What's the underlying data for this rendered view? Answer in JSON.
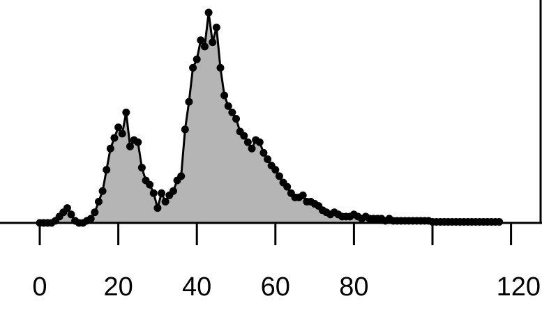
{
  "chart_data": {
    "type": "area",
    "title": "",
    "xlabel": "",
    "ylabel": "",
    "xlim": [
      0,
      120
    ],
    "ylim": [
      0,
      1.0
    ],
    "x_ticks": [
      0,
      20,
      40,
      60,
      80,
      100,
      120
    ],
    "x_tick_labels": [
      "0",
      "20",
      "40",
      "60",
      "80",
      "",
      "120"
    ],
    "grid": false,
    "legend": "none",
    "colors": {
      "fill": "#b5b5b5",
      "line": "#000000",
      "marker": "#000000"
    },
    "series": [
      {
        "x": [
          0,
          1,
          2,
          3,
          4,
          5,
          6,
          7,
          8,
          9,
          10,
          11,
          12,
          13,
          14,
          15,
          16,
          17,
          18,
          19,
          20,
          21,
          22,
          23,
          24,
          25,
          26,
          27,
          28,
          29,
          30,
          31,
          32,
          33,
          34,
          35,
          36,
          37,
          38,
          39,
          40,
          41,
          42,
          43,
          44,
          45,
          46,
          47,
          48,
          49,
          50,
          51,
          52,
          53,
          54,
          55,
          56,
          57,
          58,
          59,
          60,
          61,
          62,
          63,
          64,
          65,
          66,
          67,
          68,
          69,
          70,
          71,
          72,
          73,
          74,
          75,
          76,
          77,
          78,
          79,
          80,
          81,
          82,
          83,
          84,
          85,
          86,
          87,
          88,
          89,
          90,
          91,
          92,
          93,
          94,
          95,
          96,
          97,
          98,
          99,
          100,
          101,
          102,
          103,
          104,
          105,
          106,
          107,
          108,
          109,
          110,
          111,
          112,
          113,
          114,
          115,
          116,
          117
        ],
        "y": [
          0,
          0,
          0,
          0,
          0.01,
          0.03,
          0.05,
          0.07,
          0.04,
          0.01,
          0,
          0,
          0.01,
          0.02,
          0.05,
          0.1,
          0.15,
          0.25,
          0.35,
          0.4,
          0.45,
          0.42,
          0.52,
          0.36,
          0.39,
          0.38,
          0.26,
          0.2,
          0.18,
          0.14,
          0.07,
          0.14,
          0.1,
          0.13,
          0.15,
          0.2,
          0.22,
          0.44,
          0.57,
          0.73,
          0.77,
          0.86,
          0.83,
          0.99,
          0.85,
          0.92,
          0.73,
          0.6,
          0.55,
          0.52,
          0.49,
          0.43,
          0.41,
          0.38,
          0.35,
          0.39,
          0.38,
          0.33,
          0.3,
          0.27,
          0.25,
          0.22,
          0.19,
          0.17,
          0.14,
          0.12,
          0.12,
          0.13,
          0.1,
          0.1,
          0.09,
          0.08,
          0.06,
          0.05,
          0.04,
          0.05,
          0.04,
          0.03,
          0.03,
          0.03,
          0.04,
          0.03,
          0.02,
          0.03,
          0.02,
          0.02,
          0.02,
          0.02,
          0.01,
          0.02,
          0.01,
          0.01,
          0.01,
          0.01,
          0.01,
          0.01,
          0.01,
          0.01,
          0.01,
          0.01,
          0.005,
          0.005,
          0.005,
          0.005,
          0.005,
          0.005,
          0.005,
          0.005,
          0.005,
          0.005,
          0.005,
          0.005,
          0.005,
          0.005,
          0.005,
          0.005,
          0.005,
          0.005
        ]
      }
    ]
  }
}
